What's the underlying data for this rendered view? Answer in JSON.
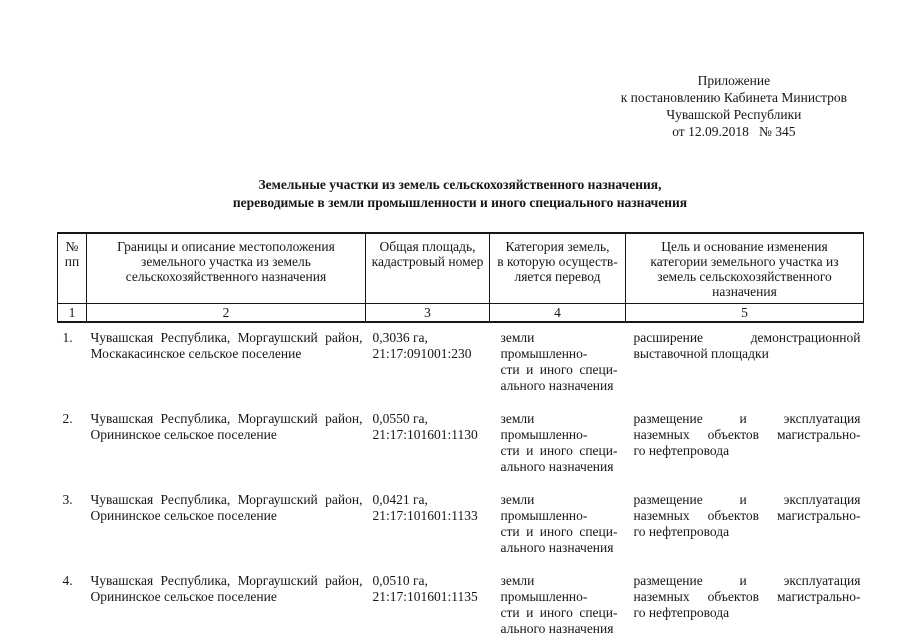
{
  "page": {
    "ink_color": "#161616",
    "paper_color": "#ffffff"
  },
  "header_block": {
    "lines": [
      "Приложение",
      "к постановлению Кабинета Министров",
      "Чувашской Республики",
      "от 12.09.2018   № 345"
    ]
  },
  "title": {
    "lines": [
      "Земельные участки из земель сельскохозяйственного назначения,",
      "переводимые в земли промышленности и иного специального назначения"
    ]
  },
  "table": {
    "headers": [
      "№\nпп",
      "Границы и описание местоположения\nземельного участка из земель\nсельскохозяйственного назначения",
      "Общая площадь,\nкадастровый номер",
      "Категория земель,\nв которую осуществ-\nляется перевод",
      "Цель и основание изменения\nкатегории земельного участка из\nземель сельскохозяйственного\nназначения"
    ],
    "column_numbers": [
      "1",
      "2",
      "3",
      "4",
      "5"
    ],
    "rows": [
      {
        "num": "1.",
        "location": "Чувашская Республика, Моргаушский район,\nМоскакасинское сельское поселение",
        "area_cadastre": "0,3036 га,\n21:17:091001:230",
        "category": "земли промышленно-\nсти и иного специ-\nального назначения",
        "purpose": "расширение демонстрационной\nвыставочной площадки"
      },
      {
        "num": "2.",
        "location": "Чувашская Республика, Моргаушский район,\nОрининское сельское поселение",
        "area_cadastre": "0,0550 га,\n21:17:101601:1130",
        "category": "земли промышленно-\nсти и иного специ-\nального назначения",
        "purpose": "размещение и эксплуатация\nназемных объектов магистрально-\nго нефтепровода"
      },
      {
        "num": "3.",
        "location": "Чувашская Республика, Моргаушский район,\nОрининское сельское поселение",
        "area_cadastre": "0,0421 га,\n21:17:101601:1133",
        "category": "земли промышленно-\nсти и иного специ-\nального назначения",
        "purpose": "размещение и эксплуатация\nназемных объектов магистрально-\nго нефтепровода"
      },
      {
        "num": "4.",
        "location": "Чувашская Республика, Моргаушский район,\nОрининское сельское поселение",
        "area_cadastre": "0,0510 га,\n21:17:101601:1135",
        "category": "земли промышленно-\nсти и иного специ-\nального назначения",
        "purpose": "размещение и эксплуатация\nназемных объектов магистрально-\nго нефтепровода"
      }
    ]
  }
}
